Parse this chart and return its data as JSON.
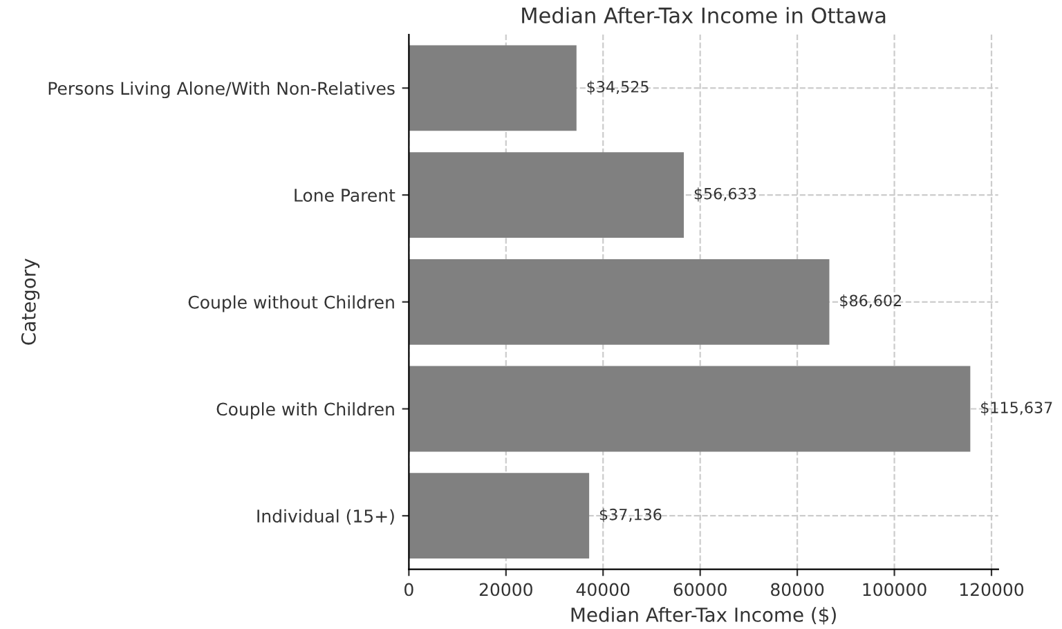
{
  "chart_data": {
    "type": "bar",
    "orientation": "horizontal",
    "title": "Median After-Tax Income in Ottawa",
    "xlabel": "Median After-Tax Income ($)",
    "ylabel": "Category",
    "categories": [
      "Persons Living Alone/With Non-Relatives",
      "Lone Parent",
      "Couple without Children",
      "Couple with Children",
      "Individual (15+)"
    ],
    "values": [
      34525,
      56633,
      86602,
      115637,
      37136
    ],
    "value_labels": [
      "$34,525",
      "$56,633",
      "$86,602",
      "$115,637",
      "$37,136"
    ],
    "color": "#808080",
    "xlim": [
      0,
      121400
    ],
    "xticks": [
      0,
      20000,
      40000,
      60000,
      80000,
      100000,
      120000
    ],
    "grid": true,
    "line_style": "dashed"
  }
}
